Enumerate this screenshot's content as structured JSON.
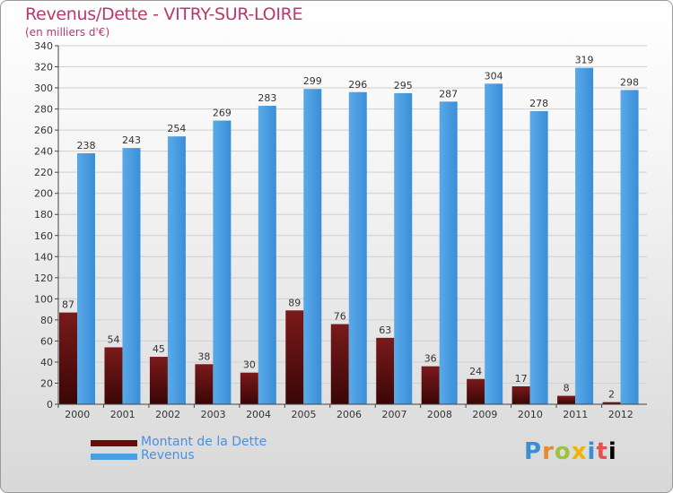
{
  "chart_data": {
    "type": "bar",
    "title": "Revenus/Dette - VITRY-SUR-LOIRE",
    "subtitle": "(en milliers d'€)",
    "categories": [
      "2000",
      "2001",
      "2002",
      "2003",
      "2004",
      "2005",
      "2006",
      "2007",
      "2008",
      "2009",
      "2010",
      "2011",
      "2012"
    ],
    "series": [
      {
        "name": "Montant de la Dette",
        "color": "#7a1010",
        "values": [
          87,
          54,
          45,
          38,
          30,
          89,
          76,
          63,
          36,
          24,
          17,
          8,
          2
        ]
      },
      {
        "name": "Revenus",
        "color": "#4a9de0",
        "values": [
          238,
          243,
          254,
          269,
          283,
          299,
          296,
          295,
          287,
          304,
          278,
          319,
          298
        ]
      }
    ],
    "ylim": [
      0,
      340
    ],
    "yticks": [
      0,
      20,
      40,
      60,
      80,
      100,
      120,
      140,
      160,
      180,
      200,
      220,
      240,
      260,
      280,
      300,
      320,
      340
    ],
    "grid": true,
    "legend_position": "bottom-left"
  },
  "logo": {
    "text": "Proxiti"
  }
}
